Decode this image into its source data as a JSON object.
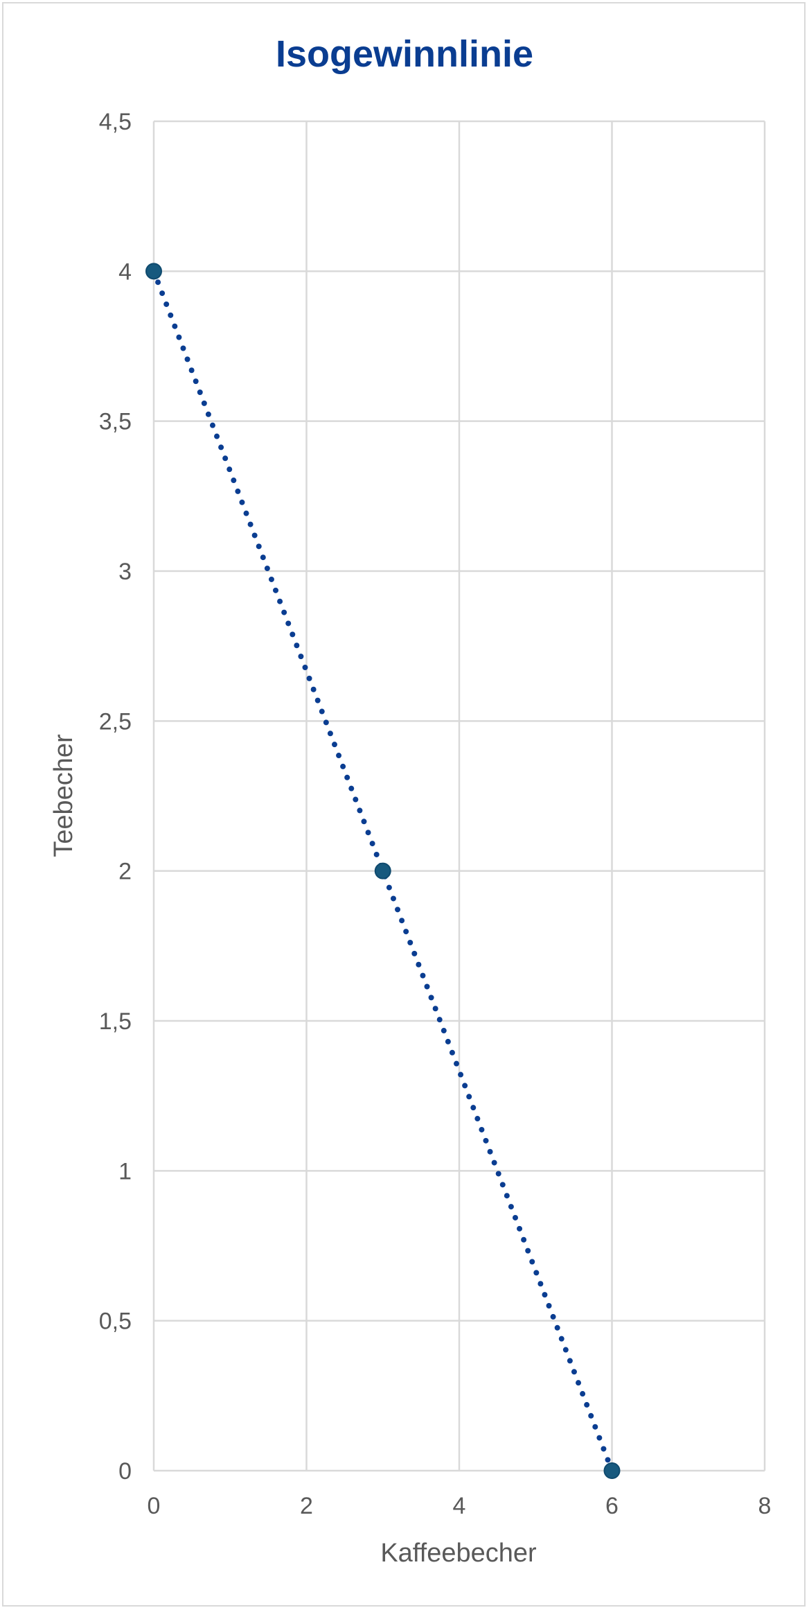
{
  "chart_data": {
    "type": "scatter",
    "title": "Isogewinnlinie",
    "xlabel": "Kaffeebecher",
    "ylabel": "Teebecher",
    "xlim": [
      0,
      8
    ],
    "ylim": [
      0,
      4.5
    ],
    "x_ticks": [
      "0",
      "2",
      "4",
      "6",
      "8"
    ],
    "y_ticks": [
      "0",
      "0,5",
      "1",
      "1,5",
      "2",
      "2,5",
      "3",
      "3,5",
      "4",
      "4,5"
    ],
    "grid": true,
    "line_style": "dotted",
    "series": [
      {
        "points": [
          {
            "x": 0,
            "y": 4
          },
          {
            "x": 3,
            "y": 2
          },
          {
            "x": 6,
            "y": 0
          }
        ]
      }
    ],
    "colors": {
      "title": "#0a3d91",
      "line": "#0a3d91",
      "marker": "#17597e",
      "grid": "#d9d9d9"
    }
  }
}
